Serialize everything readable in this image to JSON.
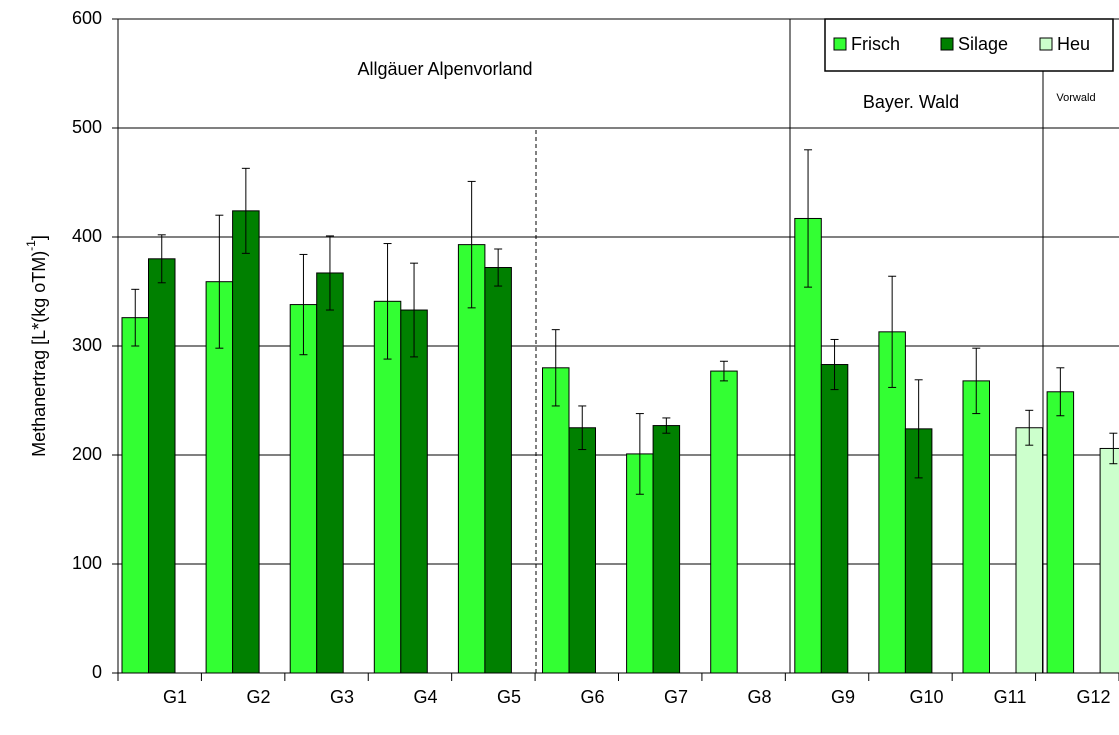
{
  "chart_data": {
    "type": "bar",
    "y_label": "Methanertrag [L*(kg oTM)",
    "y_label_sup": "-1",
    "y_label_end": "]",
    "categories": [
      "G1",
      "G2",
      "G3",
      "G4",
      "G5",
      "G6",
      "G7",
      "G8",
      "G9",
      "G10",
      "G11",
      "G12"
    ],
    "series": [
      {
        "name": "Frisch",
        "color": "#33ff33",
        "values": [
          326,
          359,
          338,
          341,
          393,
          280,
          201,
          277,
          417,
          313,
          268,
          258
        ],
        "errors": [
          26,
          61,
          46,
          53,
          58,
          35,
          37,
          9,
          63,
          51,
          30,
          22
        ]
      },
      {
        "name": "Silage",
        "color": "#008000",
        "values": [
          380,
          424,
          367,
          333,
          372,
          225,
          227,
          null,
          283,
          224,
          null,
          null
        ],
        "errors": [
          22,
          39,
          34,
          43,
          17,
          20,
          7,
          null,
          23,
          45,
          null,
          null
        ]
      },
      {
        "name": "Heu",
        "color": "#ccffcc",
        "values": [
          null,
          null,
          null,
          null,
          null,
          null,
          null,
          null,
          null,
          null,
          225,
          206
        ],
        "errors": [
          null,
          null,
          null,
          null,
          null,
          null,
          null,
          null,
          null,
          null,
          16,
          14
        ]
      }
    ],
    "annotations": [
      "Allgäuer Alpenvorland",
      "Bayer. Wald",
      "Vorwald"
    ],
    "ylim": [
      0,
      600
    ],
    "yticks": [
      0,
      100,
      200,
      300,
      400,
      500,
      600
    ],
    "grid": true,
    "legend": "top-right"
  }
}
